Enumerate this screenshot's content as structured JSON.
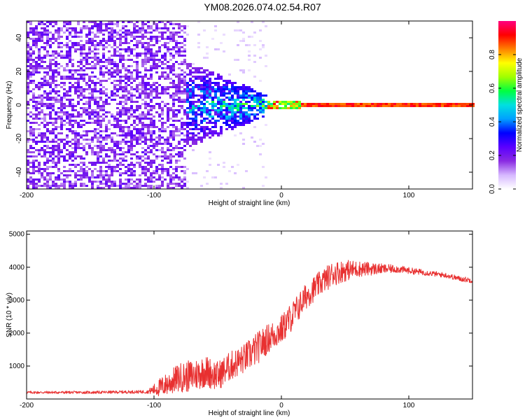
{
  "title": "YM08.2026.074.02.54.R07",
  "colors": {
    "snr_line": "#e83030",
    "colormap": [
      "#ffffff",
      "#d6b8ff",
      "#8a2be2",
      "#5a00ff",
      "#0000ff",
      "#00a0ff",
      "#00e0e0",
      "#00ff40",
      "#a0ff00",
      "#ffff00",
      "#ff8000",
      "#ff0000",
      "#ff0080"
    ]
  },
  "chart_data": [
    {
      "type": "heatmap",
      "name": "spectrogram",
      "xlabel": "Height of straight line (km)",
      "ylabel": "Frequency (Hz)",
      "xlim": [
        -200,
        150
      ],
      "ylim": [
        -50,
        50
      ],
      "xticks": [
        -200,
        -100,
        0,
        100
      ],
      "xtick_labels": [
        "-200",
        "-100",
        "0",
        "100"
      ],
      "yticks": [
        -40,
        -20,
        0,
        20,
        40
      ],
      "ytick_labels": [
        "-40",
        "-20",
        "0",
        "20",
        "40"
      ],
      "colorbar": {
        "label": "Normalized spectral amplitude",
        "range": [
          0.0,
          1.0
        ],
        "ticks": [
          0.0,
          0.2,
          0.4,
          0.6,
          0.8
        ],
        "tick_labels": [
          "0.0",
          "0.2",
          "0.4",
          "0.6",
          "0.8"
        ]
      },
      "regions": [
        {
          "description": "broadband low-amplitude noise",
          "x": [
            -200,
            -75
          ],
          "y": [
            -50,
            50
          ],
          "amplitude": 0.12
        },
        {
          "description": "widening noise band",
          "x": [
            -75,
            -10
          ],
          "y": [
            -20,
            20
          ],
          "amplitude": 0.25
        },
        {
          "description": "narrowing signal near 0 Hz",
          "x": [
            -10,
            15
          ],
          "y": [
            -3,
            3
          ],
          "amplitude": 0.8
        },
        {
          "description": "steady carrier at 0 Hz",
          "x": [
            15,
            150
          ],
          "y": [
            -1,
            1
          ],
          "amplitude": 0.95
        }
      ]
    },
    {
      "type": "line",
      "name": "snr",
      "xlabel": "Height of straight line (km)",
      "ylabel": "SNR (10 * v/v)",
      "xlim": [
        -200,
        150
      ],
      "ylim": [
        0,
        5100
      ],
      "xticks": [
        -200,
        -100,
        0,
        100
      ],
      "xtick_labels": [
        "-200",
        "-100",
        "0",
        "100"
      ],
      "yticks": [
        1000,
        2000,
        3000,
        4000,
        5000
      ],
      "ytick_labels": [
        "1000",
        "2000",
        "3000",
        "4000",
        "5000"
      ],
      "series": [
        {
          "name": "SNR envelope (approx.)",
          "x": [
            -200,
            -150,
            -105,
            -95,
            -80,
            -70,
            -60,
            -50,
            -40,
            -30,
            -20,
            -10,
            0,
            10,
            20,
            30,
            40,
            50,
            60,
            70,
            80,
            90,
            100,
            110,
            120,
            130,
            140,
            150
          ],
          "y": [
            200,
            200,
            220,
            350,
            650,
            700,
            850,
            700,
            1000,
            1200,
            1500,
            1850,
            2100,
            2600,
            3150,
            3500,
            3800,
            3900,
            3950,
            3950,
            3950,
            3950,
            3900,
            3850,
            3800,
            3750,
            3650,
            3600
          ],
          "noise_amplitude": [
            40,
            40,
            50,
            300,
            450,
            500,
            500,
            450,
            450,
            450,
            500,
            450,
            450,
            450,
            400,
            380,
            380,
            330,
            250,
            200,
            150,
            120,
            100,
            90,
            80,
            80,
            80,
            80
          ]
        }
      ]
    }
  ]
}
